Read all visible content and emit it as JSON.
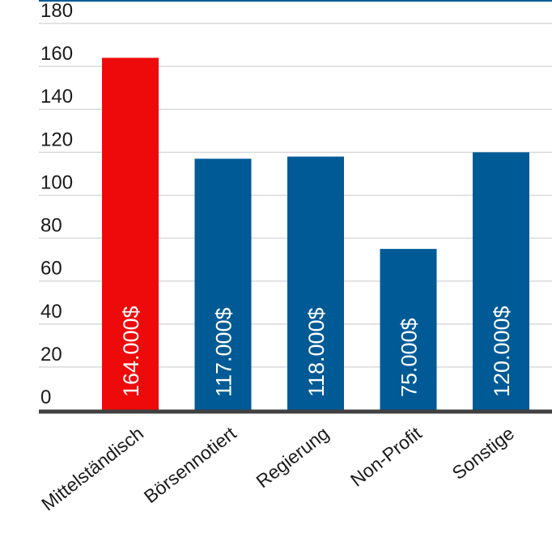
{
  "chart_data": {
    "type": "bar",
    "categories": [
      "Mittelständisch",
      "Börsennotiert",
      "Regierung",
      "Non-Profit",
      "Sonstige"
    ],
    "values": [
      164,
      117,
      118,
      75,
      120
    ],
    "data_labels": [
      "164.000$",
      "117.000$",
      "118.000$",
      "75.000$",
      "120.000$"
    ],
    "y_ticks": [
      "0",
      "20",
      "40",
      "60",
      "80",
      "100",
      "120",
      "140",
      "160",
      "180"
    ],
    "ylim": [
      0,
      180
    ],
    "grid": true,
    "title": "",
    "xlabel": "",
    "ylabel": "",
    "colors": {
      "highlight": "#ee0a0a",
      "default": "#005a96",
      "grid": "#d9d9d9",
      "axis": "#404040",
      "top_line": "#005a96"
    },
    "highlight_index": 0
  }
}
